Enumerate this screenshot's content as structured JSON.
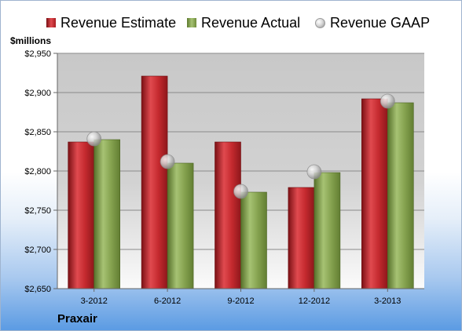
{
  "chart_data": {
    "type": "bar",
    "ylabel": "$millions",
    "ylim": [
      2650,
      2950
    ],
    "yticks": [
      "$2,650",
      "$2,700",
      "$2,750",
      "$2,800",
      "$2,850",
      "$2,900",
      "$2,950"
    ],
    "ytick_values": [
      2650,
      2700,
      2750,
      2800,
      2850,
      2900,
      2950
    ],
    "categories": [
      "3-2012",
      "6-2012",
      "9-2012",
      "12-2012",
      "3-2013"
    ],
    "series": [
      {
        "name": "Revenue Estimate",
        "type": "bar",
        "color": "#c0282d",
        "values": [
          2837,
          2921,
          2837,
          2779,
          2892
        ]
      },
      {
        "name": "Revenue Actual",
        "type": "bar",
        "color": "#8aa754",
        "values": [
          2840,
          2810,
          2773,
          2798,
          2887
        ]
      },
      {
        "name": "Revenue GAAP",
        "type": "marker",
        "color": "#c8c8c8",
        "values": [
          2841,
          2812,
          2774,
          2799,
          2889
        ]
      }
    ],
    "grid": true,
    "legend_position": "top"
  },
  "company": "Praxair"
}
